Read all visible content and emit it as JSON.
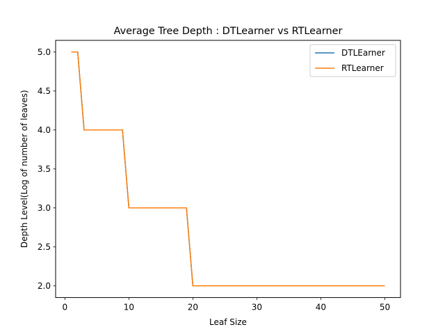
{
  "chart_data": {
    "type": "line",
    "title": "Average Tree Depth : DTLearner vs RTLearner",
    "xlabel": "Leaf Size",
    "ylabel": "Depth Level(Log of number of leaves)",
    "xlim": [
      -1.45,
      52.45
    ],
    "ylim": [
      1.85,
      5.15
    ],
    "xticks": [
      0,
      10,
      20,
      30,
      40,
      50
    ],
    "xtick_labels": [
      "0",
      "10",
      "20",
      "30",
      "40",
      "50"
    ],
    "yticks": [
      2.0,
      2.5,
      3.0,
      3.5,
      4.0,
      4.5,
      5.0
    ],
    "ytick_labels": [
      "2.0",
      "2.5",
      "3.0",
      "3.5",
      "4.0",
      "4.5",
      "5.0"
    ],
    "grid": false,
    "legend_position": "upper right",
    "series": [
      {
        "name": "DTLEarner",
        "color": "#1f77b4",
        "x": [
          1,
          2,
          3,
          4,
          5,
          6,
          7,
          8,
          9,
          10,
          11,
          12,
          13,
          14,
          15,
          16,
          17,
          18,
          19,
          20,
          21,
          22,
          23,
          24,
          25,
          26,
          27,
          28,
          29,
          30,
          31,
          32,
          33,
          34,
          35,
          36,
          37,
          38,
          39,
          40,
          41,
          42,
          43,
          44,
          45,
          46,
          47,
          48,
          49,
          50
        ],
        "y": [
          5,
          5,
          4,
          4,
          4,
          4,
          4,
          4,
          4,
          3,
          3,
          3,
          3,
          3,
          3,
          3,
          3,
          3,
          3,
          2,
          2,
          2,
          2,
          2,
          2,
          2,
          2,
          2,
          2,
          2,
          2,
          2,
          2,
          2,
          2,
          2,
          2,
          2,
          2,
          2,
          2,
          2,
          2,
          2,
          2,
          2,
          2,
          2,
          2,
          2
        ]
      },
      {
        "name": "RTLearner",
        "color": "#ff7f0e",
        "x": [
          1,
          2,
          3,
          4,
          5,
          6,
          7,
          8,
          9,
          10,
          11,
          12,
          13,
          14,
          15,
          16,
          17,
          18,
          19,
          20,
          21,
          22,
          23,
          24,
          25,
          26,
          27,
          28,
          29,
          30,
          31,
          32,
          33,
          34,
          35,
          36,
          37,
          38,
          39,
          40,
          41,
          42,
          43,
          44,
          45,
          46,
          47,
          48,
          49,
          50
        ],
        "y": [
          5,
          5,
          4,
          4,
          4,
          4,
          4,
          4,
          4,
          3,
          3,
          3,
          3,
          3,
          3,
          3,
          3,
          3,
          3,
          2,
          2,
          2,
          2,
          2,
          2,
          2,
          2,
          2,
          2,
          2,
          2,
          2,
          2,
          2,
          2,
          2,
          2,
          2,
          2,
          2,
          2,
          2,
          2,
          2,
          2,
          2,
          2,
          2,
          2,
          2
        ]
      }
    ]
  }
}
